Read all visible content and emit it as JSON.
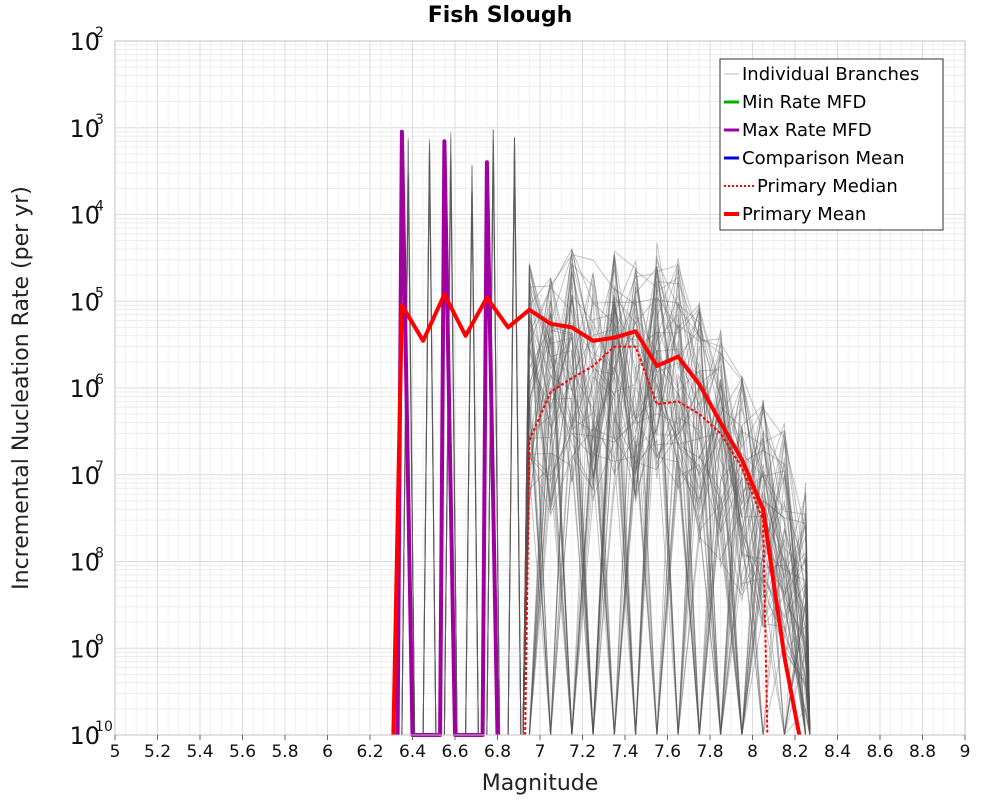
{
  "chart_data": {
    "type": "line",
    "title": "Fish Slough",
    "xlabel": "Magnitude",
    "ylabel": "Incremental Nucleation Rate (per yr)",
    "x_scale": "linear",
    "y_scale": "log",
    "xlim": [
      5,
      9
    ],
    "ylim": [
      1e-10,
      0.01
    ],
    "x_ticks": [
      "5",
      "5.2",
      "5.4",
      "5.6",
      "5.8",
      "6",
      "6.2",
      "6.4",
      "6.6",
      "6.8",
      "7",
      "7.2",
      "7.4",
      "7.6",
      "7.8",
      "8",
      "8.2",
      "8.4",
      "8.6",
      "8.8",
      "9"
    ],
    "y_ticks": [
      {
        "base": "10",
        "exp": "-10"
      },
      {
        "base": "10",
        "exp": "-9"
      },
      {
        "base": "10",
        "exp": "-8"
      },
      {
        "base": "10",
        "exp": "-7"
      },
      {
        "base": "10",
        "exp": "-6"
      },
      {
        "base": "10",
        "exp": "-5"
      },
      {
        "base": "10",
        "exp": "-4"
      },
      {
        "base": "10",
        "exp": "-3"
      },
      {
        "base": "10",
        "exp": "-2"
      }
    ],
    "grid": true,
    "legend_position": "top-right",
    "legend": [
      {
        "label": "Individual Branches",
        "color": "#bbbbbb",
        "style": "thin"
      },
      {
        "label": "Min Rate MFD",
        "color": "#00b000",
        "style": "solid"
      },
      {
        "label": "Max Rate MFD",
        "color": "#a000a0",
        "style": "solid"
      },
      {
        "label": "Comparison Mean",
        "color": "#0000dd",
        "style": "solid"
      },
      {
        "label": "Primary Median",
        "color": "#ff0000",
        "style": "dotted"
      },
      {
        "label": "Primary Mean",
        "color": "#ff0000",
        "style": "thick"
      }
    ],
    "series": [
      {
        "name": "Max Rate MFD",
        "color": "#a000a0",
        "x": [
          6.33,
          6.35,
          6.4,
          6.53,
          6.55,
          6.6,
          6.73,
          6.75,
          6.8
        ],
        "y": [
          1e-10,
          0.0009,
          1e-10,
          1e-10,
          0.0007,
          1e-10,
          1e-10,
          0.0004,
          1e-10
        ]
      },
      {
        "name": "Primary Mean",
        "color": "#ff0000",
        "x": [
          6.31,
          6.35,
          6.45,
          6.55,
          6.65,
          6.75,
          6.85,
          6.95,
          7.05,
          7.15,
          7.25,
          7.35,
          7.45,
          7.55,
          7.65,
          7.75,
          7.85,
          7.95,
          8.05,
          8.15,
          8.22
        ],
        "y": [
          1e-10,
          9e-06,
          3.5e-06,
          1.2e-05,
          4e-06,
          1.1e-05,
          5e-06,
          8e-06,
          5.5e-06,
          5e-06,
          3.5e-06,
          3.8e-06,
          4.5e-06,
          1.8e-06,
          2.3e-06,
          1.1e-06,
          4e-07,
          1.5e-07,
          4e-08,
          8e-10,
          1e-10
        ]
      },
      {
        "name": "Primary Median",
        "color": "#ff0000",
        "x": [
          6.93,
          6.95,
          7.05,
          7.15,
          7.25,
          7.35,
          7.45,
          7.55,
          7.65,
          7.75,
          7.85,
          7.95,
          8.05,
          8.07
        ],
        "y": [
          1e-10,
          2.5e-07,
          9e-07,
          1.3e-06,
          1.8e-06,
          3e-06,
          3e-06,
          6.5e-07,
          7e-07,
          5e-07,
          3e-07,
          1.2e-07,
          3e-08,
          1e-10
        ]
      }
    ]
  }
}
